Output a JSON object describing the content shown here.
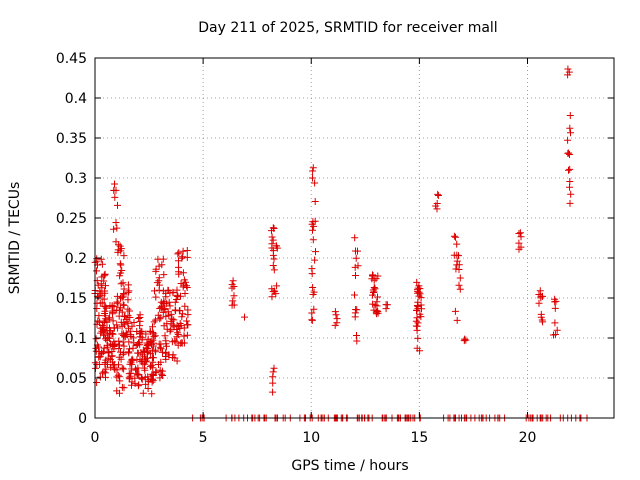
{
  "chart_data": {
    "type": "scatter",
    "title": "Day 211 of 2025, SRMTID for receiver mall",
    "xlabel": "GPS time / hours",
    "ylabel": "SRMTID / TECUs",
    "xlim": [
      0,
      24
    ],
    "ylim": [
      0,
      0.45
    ],
    "xticks": [
      0,
      5,
      10,
      15,
      20
    ],
    "yticks": [
      0,
      0.05,
      0.1,
      0.15,
      0.2,
      0.25,
      0.3,
      0.35,
      0.4,
      0.45
    ],
    "ytick_labels": [
      "0",
      "0.05",
      "0.1",
      "0.15",
      "0.2",
      "0.25",
      "0.3",
      "0.35",
      "0.4",
      "0.45"
    ],
    "grid": true,
    "marker": "+",
    "series_color": "#dd0000",
    "clusters": [
      {
        "x": [
          0.0,
          0.5
        ],
        "y": [
          0.04,
          0.2
        ],
        "n": 70
      },
      {
        "x": [
          0.4,
          0.95
        ],
        "y": [
          0.06,
          0.15
        ],
        "n": 60
      },
      {
        "x": [
          0.85,
          1.05
        ],
        "y": [
          0.22,
          0.295
        ],
        "n": 10
      },
      {
        "x": [
          1.0,
          1.35
        ],
        "y": [
          0.03,
          0.22
        ],
        "n": 55
      },
      {
        "x": [
          1.3,
          1.6
        ],
        "y": [
          0.1,
          0.17
        ],
        "n": 25
      },
      {
        "x": [
          1.55,
          2.1
        ],
        "y": [
          0.04,
          0.13
        ],
        "n": 55
      },
      {
        "x": [
          2.1,
          2.7
        ],
        "y": [
          0.03,
          0.11
        ],
        "n": 60
      },
      {
        "x": [
          2.65,
          3.2
        ],
        "y": [
          0.05,
          0.2
        ],
        "n": 55
      },
      {
        "x": [
          3.2,
          3.85
        ],
        "y": [
          0.07,
          0.16
        ],
        "n": 55
      },
      {
        "x": [
          3.8,
          4.3
        ],
        "y": [
          0.09,
          0.21
        ],
        "n": 45
      },
      {
        "x": [
          6.3,
          6.45
        ],
        "y": [
          0.14,
          0.172
        ],
        "n": 8
      },
      {
        "x": [
          6.9,
          6.95
        ],
        "y": [
          0.125,
          0.127
        ],
        "n": 1
      },
      {
        "x": [
          8.15,
          8.45
        ],
        "y": [
          0.15,
          0.24
        ],
        "n": 22
      },
      {
        "x": [
          8.2,
          8.3
        ],
        "y": [
          0.03,
          0.11
        ],
        "n": 5
      },
      {
        "x": [
          10.0,
          10.2
        ],
        "y": [
          0.12,
          0.33
        ],
        "n": 22
      },
      {
        "x": [
          11.1,
          11.2
        ],
        "y": [
          0.11,
          0.14
        ],
        "n": 5
      },
      {
        "x": [
          12.0,
          12.2
        ],
        "y": [
          0.09,
          0.24
        ],
        "n": 14
      },
      {
        "x": [
          12.8,
          13.1
        ],
        "y": [
          0.13,
          0.18
        ],
        "n": 24
      },
      {
        "x": [
          13.45,
          13.55
        ],
        "y": [
          0.13,
          0.15
        ],
        "n": 3
      },
      {
        "x": [
          14.85,
          15.1
        ],
        "y": [
          0.08,
          0.17
        ],
        "n": 30
      },
      {
        "x": [
          15.75,
          15.9
        ],
        "y": [
          0.26,
          0.28
        ],
        "n": 5
      },
      {
        "x": [
          16.6,
          16.9
        ],
        "y": [
          0.12,
          0.23
        ],
        "n": 16
      },
      {
        "x": [
          17.0,
          17.15
        ],
        "y": [
          0.09,
          0.102
        ],
        "n": 3
      },
      {
        "x": [
          19.6,
          19.75
        ],
        "y": [
          0.205,
          0.24
        ],
        "n": 6
      },
      {
        "x": [
          20.5,
          20.7
        ],
        "y": [
          0.12,
          0.162
        ],
        "n": 10
      },
      {
        "x": [
          21.2,
          21.4
        ],
        "y": [
          0.1,
          0.157
        ],
        "n": 8
      },
      {
        "x": [
          21.85,
          22.0
        ],
        "y": [
          0.25,
          0.445
        ],
        "n": 16
      }
    ],
    "zero_ranges": [
      [
        4.4,
        5.1
      ],
      [
        6.0,
        19.0
      ],
      [
        19.8,
        22.8
      ]
    ],
    "zero_count": 130
  }
}
